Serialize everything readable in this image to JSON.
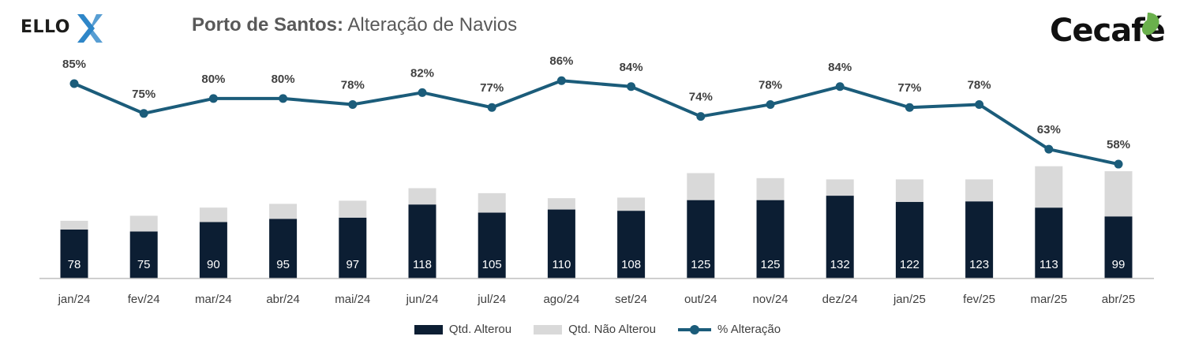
{
  "header": {
    "logo_left": "ELLO",
    "title_bold": "Porto de Santos:",
    "title_rest": "Alteração de Navios",
    "logo_right": "Cecafé"
  },
  "colors": {
    "altered": "#0c1e33",
    "not_altered": "#d9d9d9",
    "line": "#1b5c7a",
    "ello_x": "#2e86c8",
    "cecafe_leaf": "#6ab04c"
  },
  "icons": [
    "ello-x-icon",
    "coffee-leaf-icon"
  ],
  "chart_data": {
    "type": "bar",
    "stacked": true,
    "categories": [
      "jan/24",
      "fev/24",
      "mar/24",
      "abr/24",
      "mai/24",
      "jun/24",
      "jul/24",
      "ago/24",
      "set/24",
      "out/24",
      "nov/24",
      "dez/24",
      "jan/25",
      "fev/25",
      "mar/25",
      "abr/25"
    ],
    "series": [
      {
        "name": "Qtd. Alterou",
        "values": [
          78,
          75,
          90,
          95,
          97,
          118,
          105,
          110,
          108,
          125,
          125,
          132,
          122,
          123,
          113,
          99
        ],
        "data_labels": [
          "78",
          "75",
          "90",
          "95",
          "97",
          "118",
          "105",
          "110",
          "108",
          "125",
          "125",
          "132",
          "122",
          "123",
          "113",
          "99"
        ]
      },
      {
        "name": "Qtd. Não Alterou",
        "values": [
          14,
          25,
          23,
          24,
          27,
          26,
          31,
          18,
          21,
          43,
          35,
          26,
          36,
          35,
          66,
          72
        ]
      }
    ],
    "line_series": {
      "name": "% Alteração",
      "values": [
        85,
        75,
        80,
        80,
        78,
        82,
        77,
        86,
        84,
        74,
        78,
        84,
        77,
        78,
        63,
        58
      ],
      "data_labels": [
        "85%",
        "75%",
        "80%",
        "80%",
        "78%",
        "82%",
        "77%",
        "86%",
        "84%",
        "74%",
        "78%",
        "84%",
        "77%",
        "78%",
        "63%",
        "58%"
      ]
    },
    "ylim_bars": [
      0,
      180
    ],
    "ylim_line": [
      0,
      90
    ],
    "grid": false,
    "legend_position": "bottom"
  }
}
